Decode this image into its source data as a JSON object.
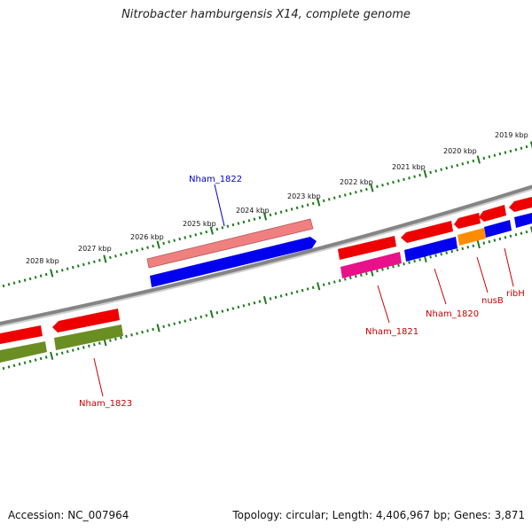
{
  "title": "Nitrobacter hamburgensis X14, complete genome",
  "footer": {
    "accession": "Accession: NC_007964",
    "topology": "Topology: circular; Length: 4,406,967 bp; Genes: 3,871"
  },
  "scale_labels": [
    "2019 kbp",
    "2020 kbp",
    "2021 kbp",
    "2022 kbp",
    "2023 kbp",
    "2024 kbp",
    "2025 kbp",
    "2026 kbp",
    "2027 kbp",
    "2028 kbp"
  ],
  "gene_labels": [
    "Nham_1822",
    "Nham_1823",
    "Nham_1821",
    "Nham_1820",
    "nusB",
    "ribH"
  ],
  "colors": {
    "backbone": "#8a8a8a",
    "tick": "#1e7a1e",
    "red": "#ee0000",
    "salmon": "#f08080",
    "blue": "#0000ee",
    "olive": "#6b8e23",
    "magenta": "#e8118a",
    "orange": "#ff8c00",
    "label_blue": "#0000cc",
    "label_red": "#cc0000"
  }
}
